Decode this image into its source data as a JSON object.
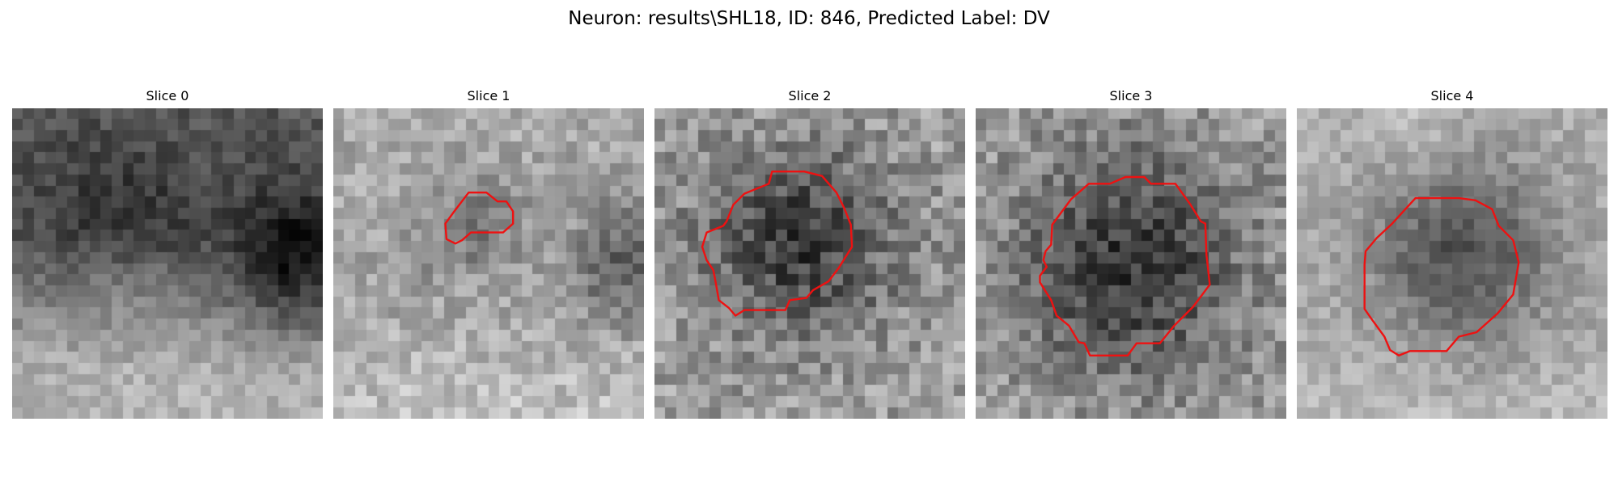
{
  "figure": {
    "title": "Neuron: results\\SHL18, ID: 846, Predicted Label: DV",
    "contour_color": "#ee1111",
    "colormap": "gray",
    "pixel_grid_size": 28
  },
  "slices": [
    {
      "title": "Slice 0",
      "contour": []
    },
    {
      "title": "Slice 1",
      "contour": [
        [
          10.1,
          10.4
        ],
        [
          10.9,
          9.3
        ],
        [
          12.2,
          7.6
        ],
        [
          13.8,
          7.6
        ],
        [
          14.8,
          8.4
        ],
        [
          15.6,
          8.4
        ],
        [
          16.2,
          9.3
        ],
        [
          16.2,
          10.4
        ],
        [
          15.3,
          11.2
        ],
        [
          12.4,
          11.2
        ],
        [
          11.6,
          11.9
        ],
        [
          11,
          12.2
        ],
        [
          10.2,
          11.8
        ]
      ]
    },
    {
      "title": "Slice 2",
      "contour": [
        [
          6.5,
          10.2
        ],
        [
          7.1,
          8.7
        ],
        [
          8.1,
          7.7
        ],
        [
          10.3,
          6.8
        ],
        [
          10.6,
          5.7
        ],
        [
          13.5,
          5.7
        ],
        [
          15.1,
          6.1
        ],
        [
          16.4,
          7.6
        ],
        [
          17.1,
          9
        ],
        [
          17.7,
          10.5
        ],
        [
          17.8,
          12.5
        ],
        [
          16.6,
          14.4
        ],
        [
          15.7,
          15.6
        ],
        [
          14.3,
          16.4
        ],
        [
          13.7,
          17.1
        ],
        [
          12.2,
          17.3
        ],
        [
          11.8,
          18.2
        ],
        [
          8.1,
          18.2
        ],
        [
          7.3,
          18.7
        ],
        [
          6.7,
          18
        ],
        [
          5.8,
          17.3
        ],
        [
          5.5,
          15.6
        ],
        [
          5.3,
          14.6
        ],
        [
          4.7,
          13.7
        ],
        [
          4.3,
          12.5
        ],
        [
          4.7,
          11.2
        ],
        [
          6.2,
          10.6
        ]
      ]
    },
    {
      "title": "Slice 3",
      "contour": [
        [
          6.9,
          10.5
        ],
        [
          8.6,
          8.2
        ],
        [
          10.2,
          6.8
        ],
        [
          12.1,
          6.8
        ],
        [
          13.5,
          6.2
        ],
        [
          15.2,
          6.2
        ],
        [
          15.8,
          6.8
        ],
        [
          18,
          6.8
        ],
        [
          19.3,
          8.6
        ],
        [
          20.3,
          10.2
        ],
        [
          20.7,
          10.4
        ],
        [
          20.8,
          13.2
        ],
        [
          21.1,
          15.9
        ],
        [
          19.6,
          17.9
        ],
        [
          17.9,
          19.6
        ],
        [
          16.6,
          21.2
        ],
        [
          14.5,
          21.2
        ],
        [
          13.7,
          22.3
        ],
        [
          10.3,
          22.3
        ],
        [
          9.8,
          21.2
        ],
        [
          9.3,
          21.1
        ],
        [
          8.4,
          19.6
        ],
        [
          7.3,
          18.7
        ],
        [
          6.8,
          17.3
        ],
        [
          6.3,
          16.5
        ],
        [
          5.8,
          15.7
        ],
        [
          5.8,
          15.1
        ],
        [
          6.4,
          14.3
        ],
        [
          6.1,
          13.7
        ],
        [
          6.3,
          12.9
        ],
        [
          6.8,
          12.3
        ]
      ]
    },
    {
      "title": "Slice 4",
      "contour": [
        [
          6.2,
          12.9
        ],
        [
          7.2,
          11.7
        ],
        [
          8.6,
          10.4
        ],
        [
          10.7,
          8.1
        ],
        [
          14.6,
          8.1
        ],
        [
          16.1,
          8.3
        ],
        [
          17.6,
          9.1
        ],
        [
          18.2,
          10.6
        ],
        [
          19.5,
          11.9
        ],
        [
          20.0,
          13.9
        ],
        [
          19.5,
          16.8
        ],
        [
          18.1,
          18.5
        ],
        [
          16.2,
          20.2
        ],
        [
          14.6,
          20.6
        ],
        [
          13.5,
          21.9
        ],
        [
          10.2,
          21.9
        ],
        [
          9.2,
          22.3
        ],
        [
          8.4,
          21.8
        ],
        [
          7.9,
          20.6
        ],
        [
          6.8,
          19.1
        ],
        [
          6.1,
          18.1
        ],
        [
          6.1,
          14.1
        ]
      ]
    }
  ]
}
